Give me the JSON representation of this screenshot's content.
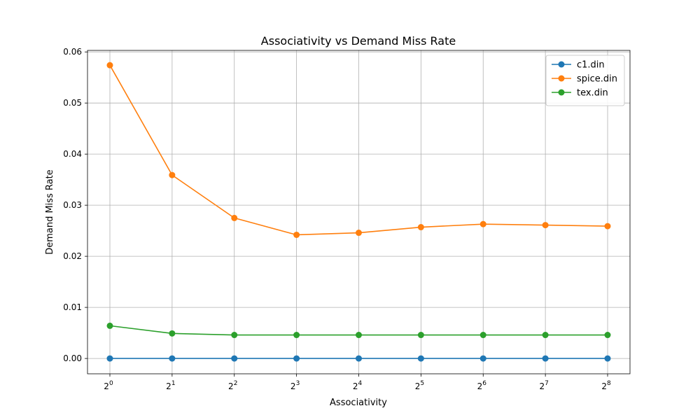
{
  "chart_data": {
    "type": "line",
    "title": "Associativity vs Demand Miss Rate",
    "xlabel": "Associativity",
    "ylabel": "Demand Miss Rate",
    "x_scale": "log2",
    "x": [
      1,
      2,
      4,
      8,
      16,
      32,
      64,
      128,
      256
    ],
    "x_tick_base": "2",
    "x_tick_exponents": [
      "0",
      "1",
      "2",
      "3",
      "4",
      "5",
      "6",
      "7",
      "8"
    ],
    "ylim": [
      -0.003,
      0.0603
    ],
    "y_ticks": [
      "0.00",
      "0.01",
      "0.02",
      "0.03",
      "0.04",
      "0.05",
      "0.06"
    ],
    "grid": true,
    "legend_position": "top-right",
    "series": [
      {
        "name": "c1.din",
        "color": "#1f77b4",
        "values": [
          0.0,
          0.0,
          0.0,
          0.0,
          0.0,
          0.0,
          0.0,
          0.0,
          0.0
        ]
      },
      {
        "name": "spice.din",
        "color": "#ff7f0e",
        "values": [
          0.0574,
          0.0359,
          0.0275,
          0.0242,
          0.0246,
          0.0257,
          0.0263,
          0.0261,
          0.0259
        ]
      },
      {
        "name": "tex.din",
        "color": "#2ca02c",
        "values": [
          0.0064,
          0.0049,
          0.0046,
          0.0046,
          0.0046,
          0.0046,
          0.0046,
          0.0046,
          0.0046
        ]
      }
    ]
  }
}
